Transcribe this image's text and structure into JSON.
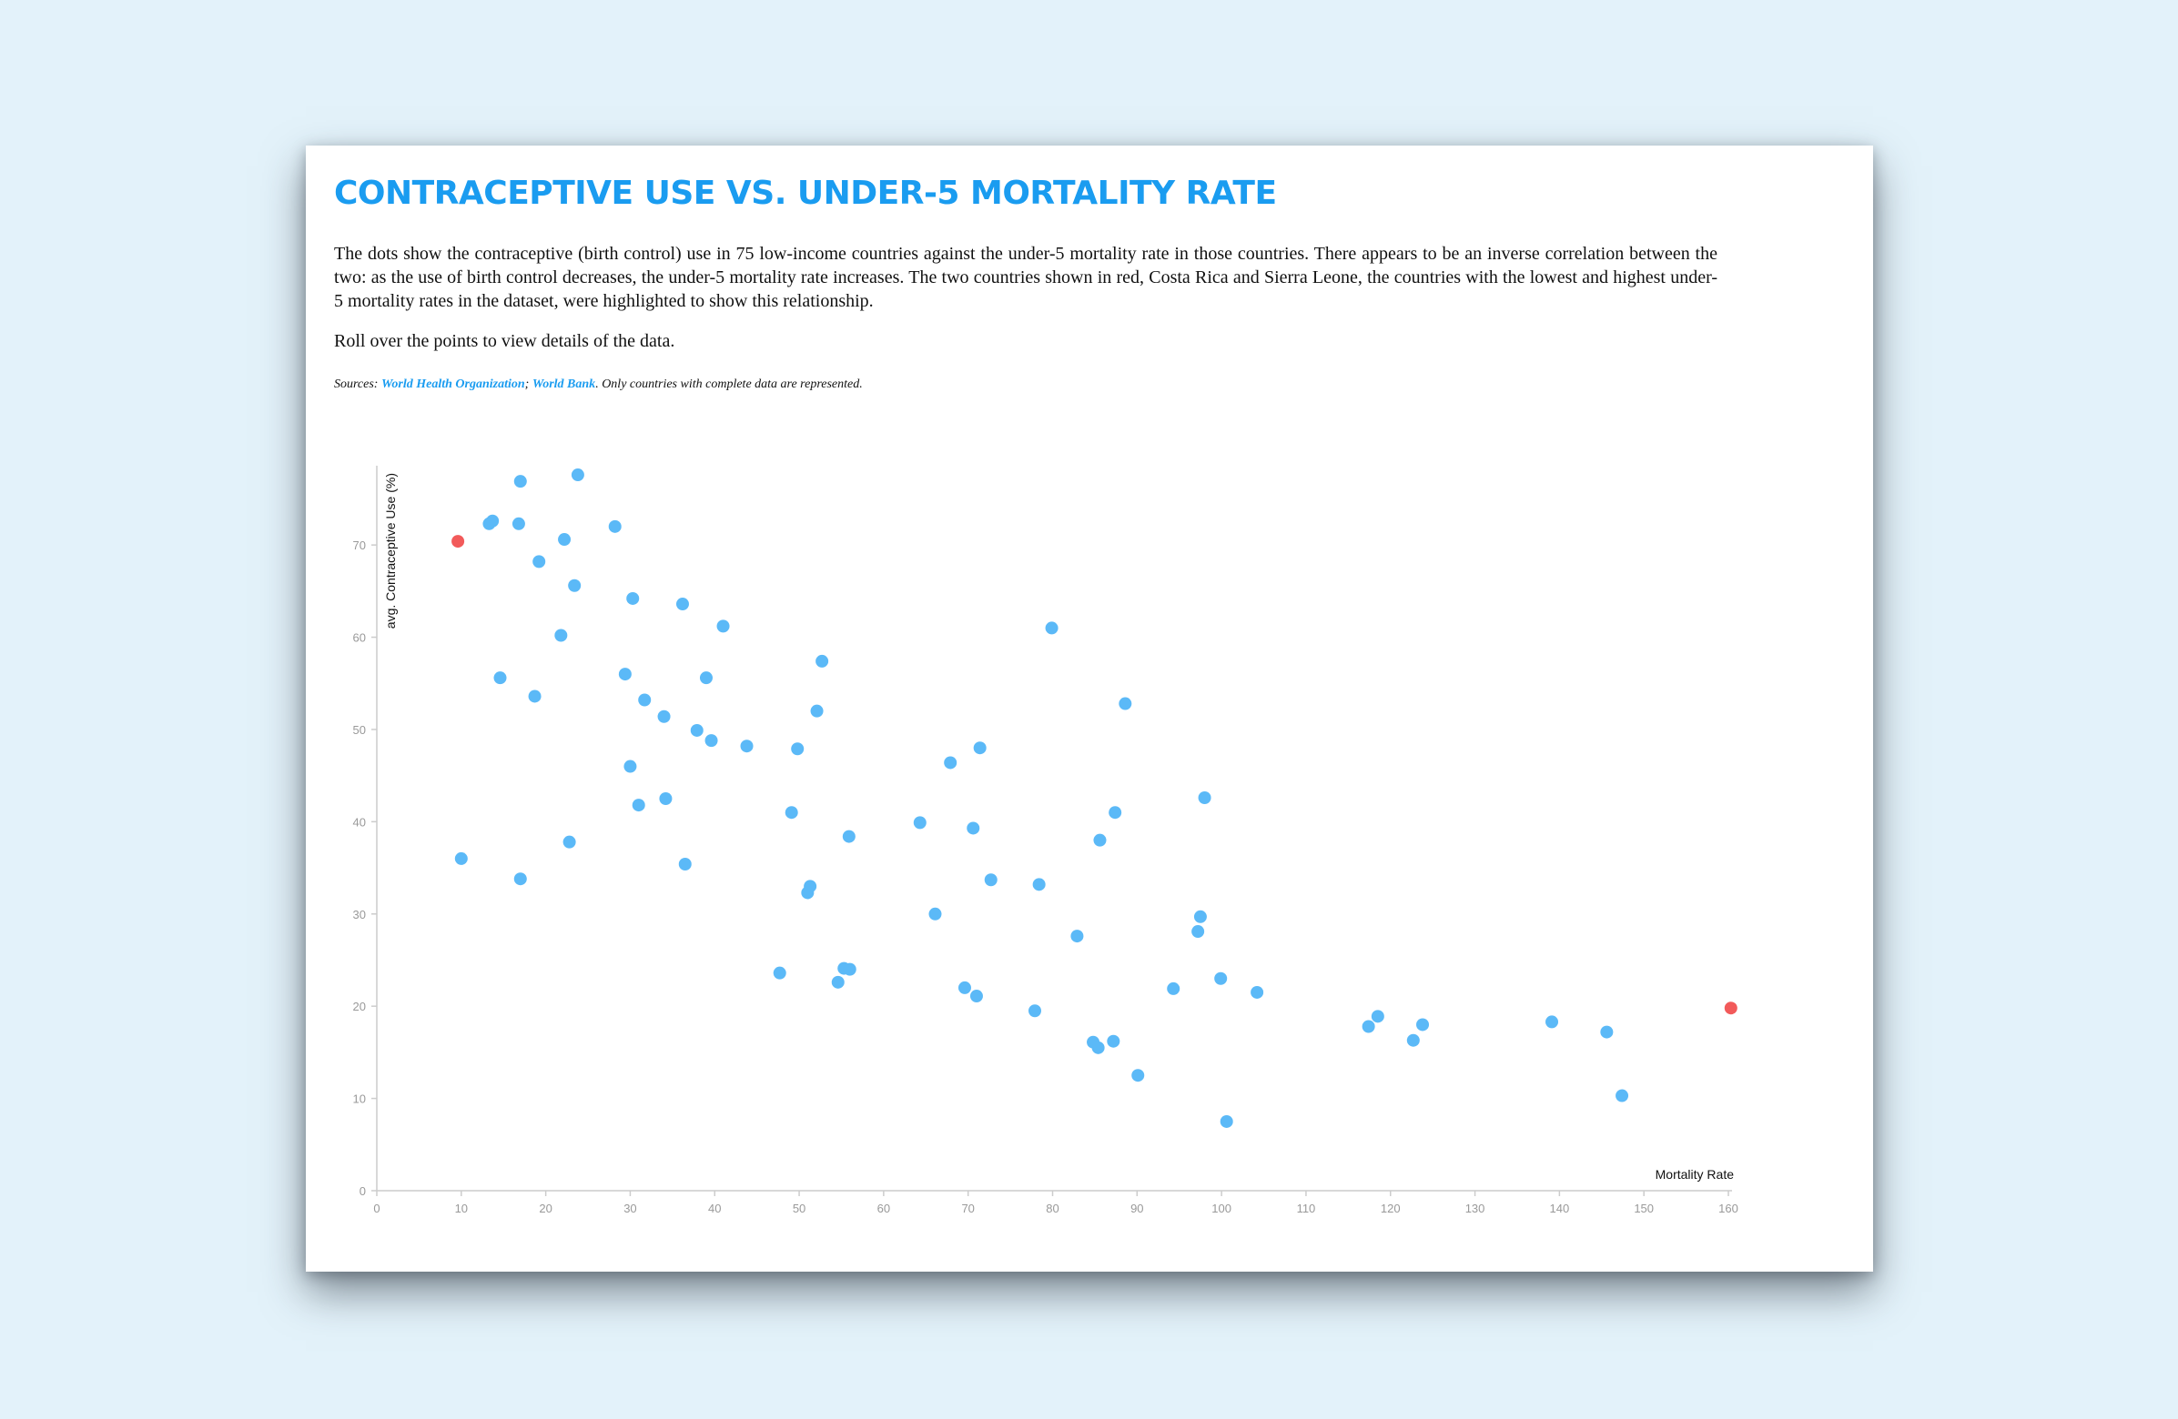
{
  "header": {
    "title": "Contraceptive Use vs. Under-5 Mortality Rate",
    "description": "The dots show the contraceptive (birth control) use in 75 low-income countries against the under-5 mortality rate in those countries. There appears to be an inverse correlation between the two: as the use of birth control decreases, the under-5 mortality rate increases. The two countries shown in red, Costa Rica and Sierra Leone, the countries with the lowest and highest under-5 mortality rates in the dataset, were highlighted to show this relationship.",
    "instruction": "Roll over the points to view details of the data."
  },
  "sources": {
    "prefix": "Sources: ",
    "link1": "World Health Organization",
    "separator": "; ",
    "link2": "World Bank",
    "suffix": ". Only countries with complete data are represented."
  },
  "colors": {
    "title": "#1a9cf0",
    "dot": "#5bb9f7",
    "highlight": "#f25a5a",
    "axis": "#cccccc",
    "tick_label": "#999999"
  },
  "chart_data": {
    "type": "scatter",
    "xlabel": "Mortality Rate",
    "ylabel": "avg. Contraceptive Use (%)",
    "xlim": [
      0,
      160
    ],
    "ylim": [
      0,
      78
    ],
    "xticks": [
      0,
      10,
      20,
      30,
      40,
      50,
      60,
      70,
      80,
      90,
      100,
      110,
      120,
      130,
      140,
      150,
      160
    ],
    "yticks": [
      0,
      10,
      20,
      30,
      40,
      50,
      60,
      70
    ],
    "grid": false,
    "highlighted": [
      {
        "x": 9.6,
        "y": 70.4
      },
      {
        "x": 160.3,
        "y": 19.8
      }
    ],
    "points": [
      {
        "x": 10.0,
        "y": 36.0
      },
      {
        "x": 13.3,
        "y": 72.3
      },
      {
        "x": 13.7,
        "y": 72.6
      },
      {
        "x": 14.6,
        "y": 55.6
      },
      {
        "x": 16.8,
        "y": 72.3
      },
      {
        "x": 17.0,
        "y": 76.9
      },
      {
        "x": 17.0,
        "y": 33.8
      },
      {
        "x": 18.7,
        "y": 53.6
      },
      {
        "x": 19.2,
        "y": 68.2
      },
      {
        "x": 21.8,
        "y": 60.2
      },
      {
        "x": 22.2,
        "y": 70.6
      },
      {
        "x": 22.8,
        "y": 37.8
      },
      {
        "x": 23.4,
        "y": 65.6
      },
      {
        "x": 23.8,
        "y": 77.6
      },
      {
        "x": 28.2,
        "y": 72.0
      },
      {
        "x": 29.4,
        "y": 56.0
      },
      {
        "x": 30.0,
        "y": 46.0
      },
      {
        "x": 30.3,
        "y": 64.2
      },
      {
        "x": 31.0,
        "y": 41.8
      },
      {
        "x": 31.7,
        "y": 53.2
      },
      {
        "x": 34.0,
        "y": 51.4
      },
      {
        "x": 34.2,
        "y": 42.5
      },
      {
        "x": 36.2,
        "y": 63.6
      },
      {
        "x": 36.5,
        "y": 35.4
      },
      {
        "x": 37.9,
        "y": 49.9
      },
      {
        "x": 39.0,
        "y": 55.6
      },
      {
        "x": 39.6,
        "y": 48.8
      },
      {
        "x": 41.0,
        "y": 61.2
      },
      {
        "x": 43.8,
        "y": 48.2
      },
      {
        "x": 47.7,
        "y": 23.6
      },
      {
        "x": 49.1,
        "y": 41.0
      },
      {
        "x": 49.8,
        "y": 47.9
      },
      {
        "x": 51.0,
        "y": 32.3
      },
      {
        "x": 51.3,
        "y": 33.0
      },
      {
        "x": 52.1,
        "y": 52.0
      },
      {
        "x": 52.7,
        "y": 57.4
      },
      {
        "x": 54.6,
        "y": 22.6
      },
      {
        "x": 55.3,
        "y": 24.1
      },
      {
        "x": 55.9,
        "y": 38.4
      },
      {
        "x": 56.0,
        "y": 24.0
      },
      {
        "x": 64.3,
        "y": 39.9
      },
      {
        "x": 66.1,
        "y": 30.0
      },
      {
        "x": 67.9,
        "y": 46.4
      },
      {
        "x": 69.6,
        "y": 22.0
      },
      {
        "x": 70.6,
        "y": 39.3
      },
      {
        "x": 71.0,
        "y": 21.1
      },
      {
        "x": 71.4,
        "y": 48.0
      },
      {
        "x": 72.7,
        "y": 33.7
      },
      {
        "x": 77.9,
        "y": 19.5
      },
      {
        "x": 78.4,
        "y": 33.2
      },
      {
        "x": 79.9,
        "y": 61.0
      },
      {
        "x": 82.9,
        "y": 27.6
      },
      {
        "x": 84.8,
        "y": 16.1
      },
      {
        "x": 85.4,
        "y": 15.5
      },
      {
        "x": 85.6,
        "y": 38.0
      },
      {
        "x": 87.2,
        "y": 16.2
      },
      {
        "x": 87.4,
        "y": 41.0
      },
      {
        "x": 88.6,
        "y": 52.8
      },
      {
        "x": 90.1,
        "y": 12.5
      },
      {
        "x": 94.3,
        "y": 21.9
      },
      {
        "x": 97.2,
        "y": 28.1
      },
      {
        "x": 97.5,
        "y": 29.7
      },
      {
        "x": 98.0,
        "y": 42.6
      },
      {
        "x": 99.9,
        "y": 23.0
      },
      {
        "x": 100.6,
        "y": 7.5
      },
      {
        "x": 104.2,
        "y": 21.5
      },
      {
        "x": 117.4,
        "y": 17.8
      },
      {
        "x": 118.5,
        "y": 18.9
      },
      {
        "x": 122.7,
        "y": 16.3
      },
      {
        "x": 123.8,
        "y": 18.0
      },
      {
        "x": 139.1,
        "y": 18.3
      },
      {
        "x": 145.6,
        "y": 17.2
      },
      {
        "x": 147.4,
        "y": 10.3
      }
    ]
  }
}
